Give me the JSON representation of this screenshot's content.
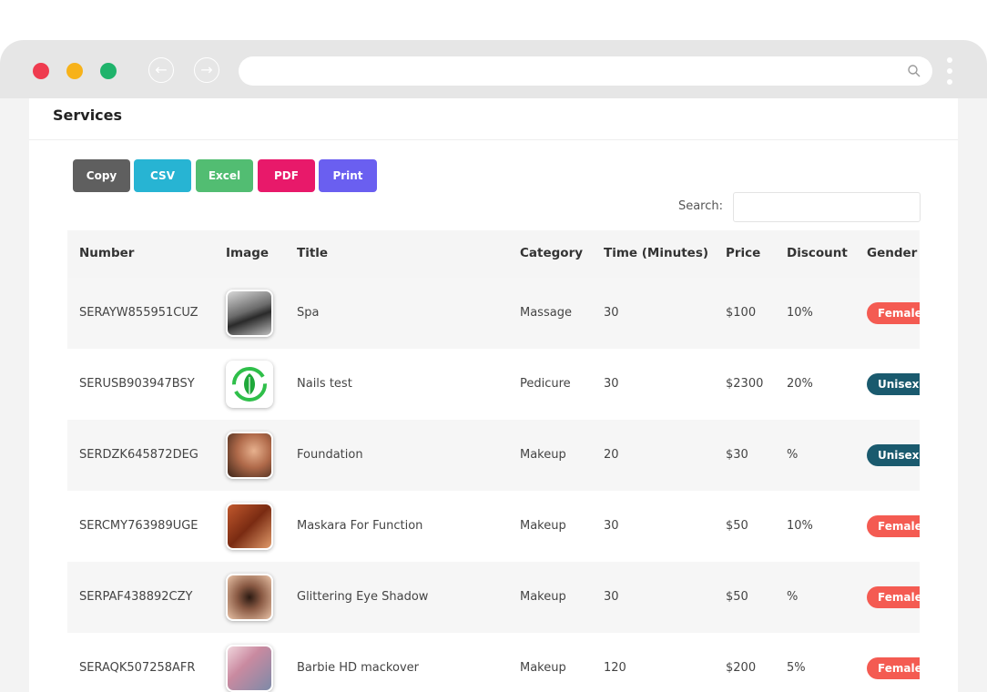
{
  "page": {
    "title": "Services",
    "buttons": [
      "Copy",
      "CSV",
      "Excel",
      "PDF",
      "Print"
    ],
    "search_label": "Search:"
  },
  "table": {
    "columns": [
      "Number",
      "Image",
      "Title",
      "Category",
      "Time (Minutes)",
      "Price",
      "Discount",
      "Gender"
    ],
    "rows": [
      [
        "SERAYW855951CUZ",
        "Spa",
        "Massage",
        "30",
        "$100",
        "10%",
        "Female"
      ],
      [
        "SERUSB903947BSY",
        "Nails test",
        "Pedicure",
        "30",
        "$2300",
        "20%",
        "Unisex"
      ],
      [
        "SERDZK645872DEG",
        "Foundation",
        "Makeup",
        "20",
        "$30",
        "%",
        "Unisex"
      ],
      [
        "SERCMY763989UGE",
        "Maskara For Function",
        "Makeup",
        "30",
        "$50",
        "10%",
        "Female"
      ],
      [
        "SERPAF438892CZY",
        "Glittering Eye Shadow",
        "Makeup",
        "30",
        "$50",
        "%",
        "Female"
      ],
      [
        "SERAQK507258AFR",
        "Barbie HD mackover",
        "Makeup",
        "120",
        "$200",
        "5%",
        "Female"
      ]
    ]
  }
}
